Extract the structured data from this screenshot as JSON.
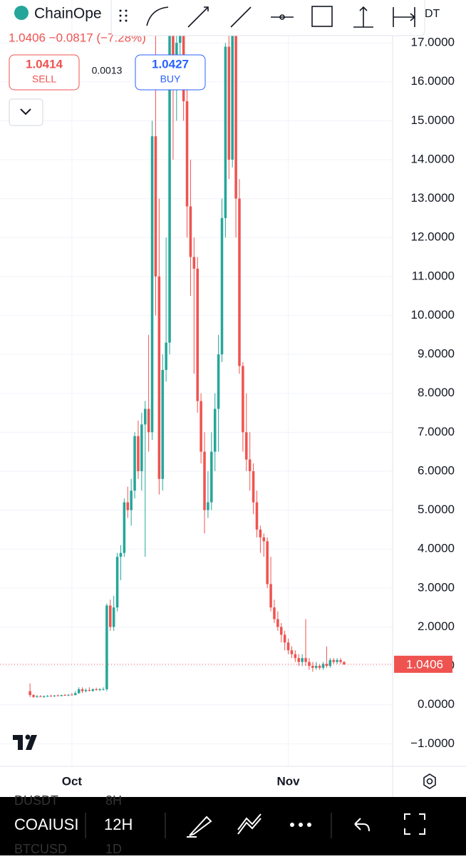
{
  "chart_data": {
    "type": "candlestick",
    "open": [
      0.35,
      0.25,
      0.2,
      0.22,
      0.2,
      0.22,
      0.23,
      0.22,
      0.24,
      0.23,
      0.25,
      0.24,
      0.26,
      0.25,
      0.3,
      0.4,
      0.35,
      0.38,
      0.36,
      0.4,
      0.38,
      0.4,
      0.4,
      2.55,
      2.0,
      2.5,
      3.8,
      3.9,
      5.2,
      5.0,
      5.5,
      6.9,
      6.0,
      7.2,
      7.6,
      7.0,
      14.6,
      11,
      5.8,
      8.6,
      9.3,
      18,
      16,
      17,
      17.5,
      15.5,
      12.8,
      11.5,
      11.2,
      7.8,
      6.5,
      5.0,
      5.2,
      6.5,
      7.6,
      9,
      12.5,
      16.9,
      14,
      18.1,
      13,
      8.7,
      7.0,
      6.3,
      6.0,
      5.2,
      4.5,
      4.3,
      4.2,
      3.1,
      2.5,
      2.2,
      2.0,
      1.8,
      1.6,
      1.4,
      1.3,
      1.2,
      1.1,
      1.2,
      1.1,
      1.0,
      0.95,
      1.0,
      0.95,
      1.05,
      1.0,
      1.15,
      1.1,
      1.15,
      1.1
    ],
    "high": [
      0.55,
      0.28,
      0.25,
      0.25,
      0.24,
      0.25,
      0.26,
      0.25,
      0.27,
      0.26,
      0.28,
      0.27,
      0.3,
      0.35,
      0.45,
      0.45,
      0.42,
      0.45,
      0.42,
      0.44,
      0.43,
      0.45,
      2.6,
      2.7,
      2.8,
      3.9,
      4.1,
      5.3,
      5.6,
      5.8,
      7.0,
      7.3,
      7.5,
      7.8,
      9.5,
      15,
      17.5,
      13,
      9,
      12,
      18.1,
      18.1,
      18.1,
      18.1,
      18.1,
      16,
      14,
      12,
      11.5,
      8,
      7,
      6,
      7,
      8,
      9.5,
      13,
      17,
      18.1,
      18.1,
      18.1,
      13.5,
      8.8,
      8,
      7,
      6.2,
      5.5,
      4.6,
      4.4,
      4.3,
      3.8,
      2.7,
      2.4,
      2.1,
      1.9,
      1.7,
      1.5,
      1.4,
      1.3,
      1.3,
      2.2,
      1.2,
      1.1,
      1.1,
      1.05,
      1.1,
      1.5,
      1.2,
      1.2,
      1.2,
      1.2,
      1.12
    ],
    "low": [
      0.2,
      0.18,
      0.18,
      0.2,
      0.18,
      0.2,
      0.21,
      0.2,
      0.22,
      0.21,
      0.23,
      0.22,
      0.24,
      0.24,
      0.28,
      0.3,
      0.32,
      0.34,
      0.33,
      0.36,
      0.35,
      0.37,
      0.35,
      1.9,
      1.9,
      2.4,
      3.2,
      3.8,
      4.8,
      4.6,
      5.3,
      5.8,
      5.5,
      3.8,
      6.5,
      6.8,
      10,
      5.4,
      5.5,
      8.3,
      9,
      14,
      15,
      16,
      15,
      12,
      10.5,
      8.5,
      7.5,
      6.2,
      4.4,
      4.8,
      5.0,
      6,
      6.5,
      8.8,
      12,
      13.5,
      13.8,
      12,
      8.5,
      6.5,
      6.0,
      5.5,
      4.9,
      4.3,
      3.9,
      3.8,
      3.0,
      2.4,
      2.1,
      1.9,
      1.6,
      1.4,
      1.3,
      1.2,
      1.1,
      1.0,
      1.0,
      1.0,
      0.9,
      0.85,
      0.9,
      0.9,
      0.9,
      0.95,
      0.95,
      1.05,
      1.05,
      1.05,
      1.02
    ],
    "close": [
      0.25,
      0.2,
      0.22,
      0.2,
      0.22,
      0.23,
      0.22,
      0.24,
      0.23,
      0.25,
      0.24,
      0.26,
      0.25,
      0.3,
      0.4,
      0.35,
      0.38,
      0.36,
      0.4,
      0.38,
      0.4,
      0.4,
      2.55,
      2.0,
      2.5,
      3.8,
      3.9,
      5.2,
      5.0,
      5.5,
      6.9,
      6.0,
      7.2,
      7.6,
      7.0,
      14.6,
      11,
      5.8,
      8.6,
      9.3,
      18.1,
      16,
      17,
      17.5,
      15.5,
      12.8,
      11.5,
      11.2,
      7.8,
      6.5,
      5.0,
      5.2,
      6.5,
      7.6,
      9,
      12.5,
      16.9,
      14,
      18.1,
      13,
      8.7,
      7.0,
      6.3,
      6.0,
      5.2,
      4.5,
      4.3,
      4.2,
      3.1,
      2.5,
      2.2,
      2.0,
      1.8,
      1.6,
      1.4,
      1.3,
      1.2,
      1.1,
      1.2,
      1.1,
      1.0,
      0.95,
      1.0,
      0.95,
      1.05,
      1.0,
      1.15,
      1.1,
      1.15,
      1.1,
      1.0406
    ],
    "up_color": "#26a69a",
    "down_color": "#ef5350",
    "ylim": [
      -1.58,
      18.1
    ],
    "yticks": [
      {
        "value": -1,
        "label": "−1.0000"
      },
      {
        "value": 0,
        "label": "0.0000"
      },
      {
        "value": 1,
        "label": "1.0000"
      },
      {
        "value": 2,
        "label": "2.0000"
      },
      {
        "value": 3,
        "label": "3.0000"
      },
      {
        "value": 4,
        "label": "4.0000"
      },
      {
        "value": 5,
        "label": "5.0000"
      },
      {
        "value": 6,
        "label": "6.0000"
      },
      {
        "value": 7,
        "label": "7.0000"
      },
      {
        "value": 8,
        "label": "8.0000"
      },
      {
        "value": 9,
        "label": "9.0000"
      },
      {
        "value": 10,
        "label": "10.0000"
      },
      {
        "value": 11,
        "label": "11.0000"
      },
      {
        "value": 12,
        "label": "12.0000"
      },
      {
        "value": 13,
        "label": "13.0000"
      },
      {
        "value": 14,
        "label": "14.0000"
      },
      {
        "value": 15,
        "label": "15.0000"
      },
      {
        "value": 16,
        "label": "16.0000"
      },
      {
        "value": 17,
        "label": "17.0000"
      }
    ],
    "xlim": [
      -8.6,
      103.9
    ],
    "xticks": [
      {
        "value": 12,
        "label": "Oct"
      },
      {
        "value": 74,
        "label": "Nov"
      }
    ],
    "grid": true
  },
  "ui": {
    "symbol": "ChainOpe",
    "symbol_suffix": "DT",
    "change_line": "1.0406 −0.0817 (−7.28%)",
    "sell_price": "1.0414",
    "sell": "SELL",
    "spread": "0.0013",
    "buy_price": "1.0427",
    "buy": "BUY",
    "bottom": {
      "ticker": "COAIUSI",
      "interval": "12H",
      "ticker_above": "DUSDT",
      "interval_above": "8H",
      "ticker_below": "BTCUSD",
      "interval_below": "1D"
    }
  }
}
